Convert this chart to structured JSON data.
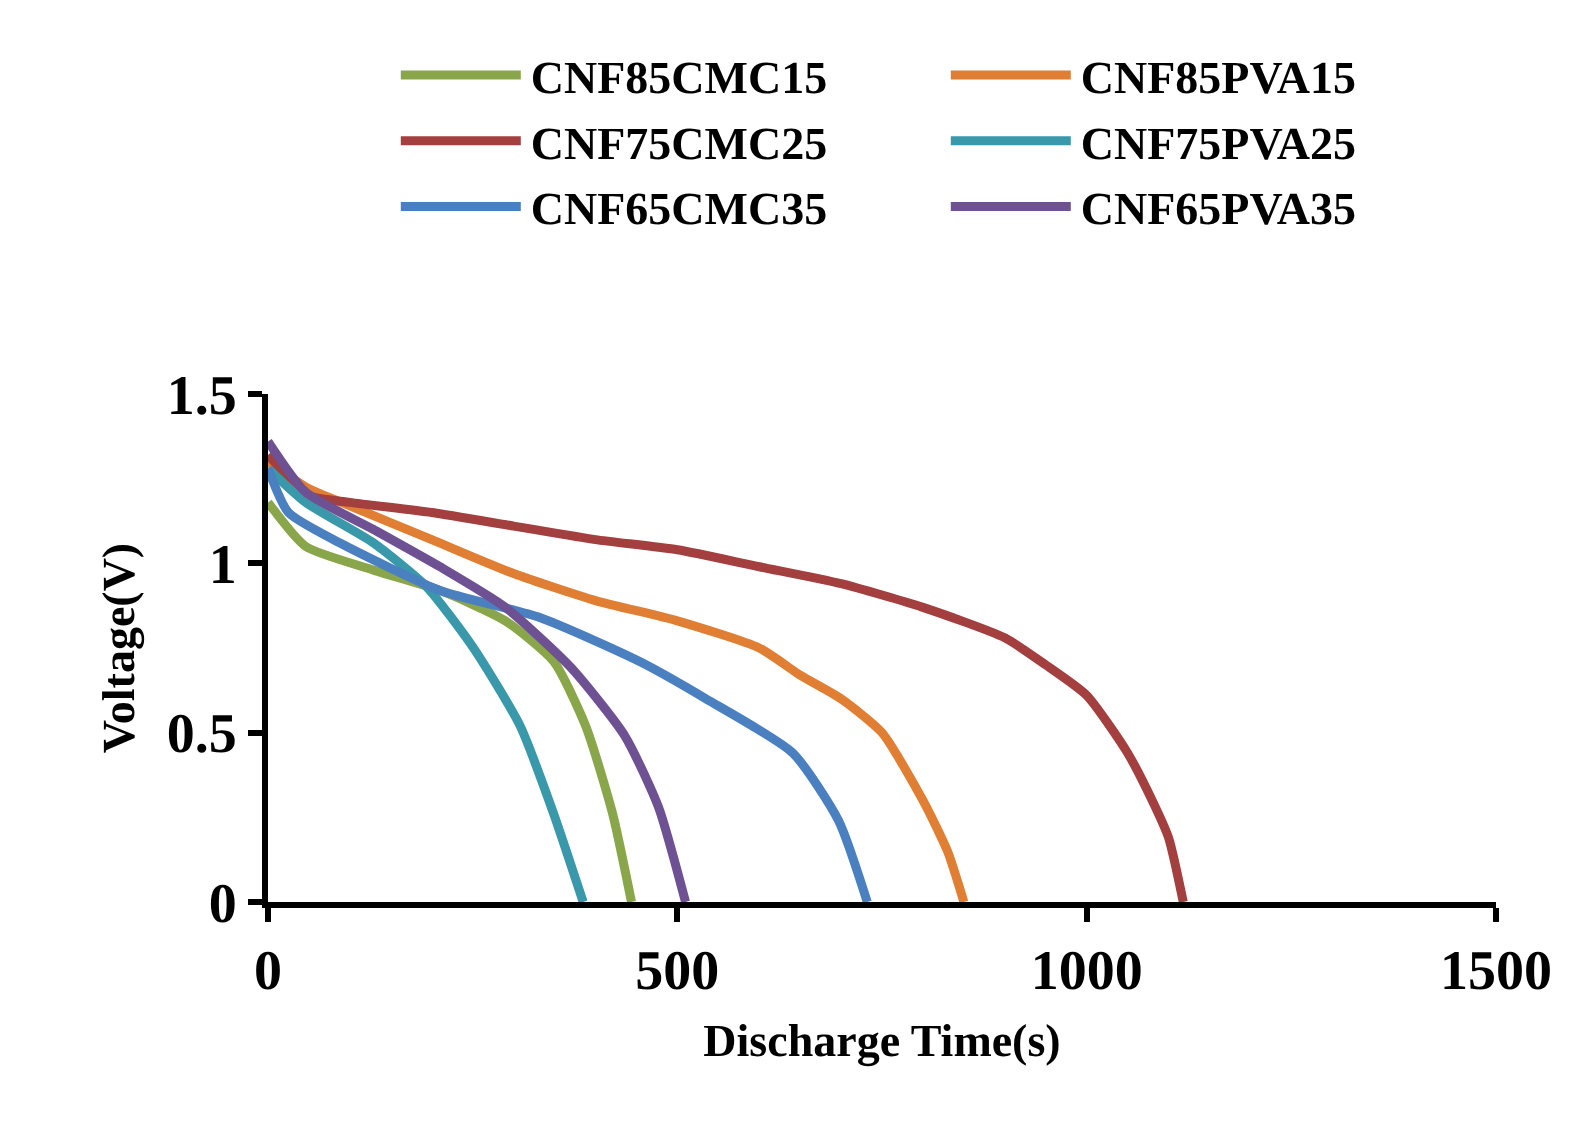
{
  "chart_data": {
    "type": "line",
    "xlabel": "Discharge Time(s)",
    "ylabel": "Voltage(V)",
    "xlim": [
      0,
      1500
    ],
    "xticks": [
      0,
      500,
      1000,
      1500
    ],
    "ylim": [
      0,
      1.5
    ],
    "yticks": [
      0,
      0.5,
      1,
      1.5
    ],
    "legend": "top",
    "marker": "none",
    "line_style": "solid",
    "series": [
      {
        "name": "CNF85CMC15",
        "color": "#8aa64a",
        "x": [
          0,
          46,
          129,
          210,
          290,
          349,
          388,
          421,
          444
        ],
        "values": [
          1.18,
          1.05,
          0.98,
          0.92,
          0.83,
          0.71,
          0.52,
          0.26,
          0
        ]
      },
      {
        "name": "CNF85PVA15",
        "color": "#e07f33",
        "x": [
          0,
          50,
          100,
          200,
          300,
          400,
          500,
          600,
          650,
          700,
          750,
          800,
          830,
          850
        ],
        "values": [
          1.3,
          1.22,
          1.17,
          1.07,
          0.97,
          0.89,
          0.83,
          0.75,
          0.67,
          0.6,
          0.5,
          0.3,
          0.15,
          0
        ]
      },
      {
        "name": "CNF75CMC25",
        "color": "#a33f3f",
        "x": [
          0,
          50,
          100,
          200,
          300,
          400,
          500,
          600,
          700,
          800,
          900,
          950,
          1000,
          1050,
          1080,
          1100,
          1118
        ],
        "values": [
          1.32,
          1.2,
          1.18,
          1.15,
          1.11,
          1.07,
          1.04,
          0.99,
          0.94,
          0.87,
          0.78,
          0.7,
          0.61,
          0.44,
          0.3,
          0.19,
          0
        ]
      },
      {
        "name": "CNF75PVA25",
        "color": "#3a98ab",
        "x": [
          0,
          46,
          129,
          194,
          251,
          308,
          349,
          385
        ],
        "values": [
          1.28,
          1.18,
          1.06,
          0.93,
          0.75,
          0.52,
          0.26,
          0
        ]
      },
      {
        "name": "CNF65CMC35",
        "color": "#4a7fc0",
        "x": [
          0,
          25,
          88,
          210,
          332,
          454,
          535,
          641,
          697,
          732
        ],
        "values": [
          1.28,
          1.15,
          1.06,
          0.92,
          0.84,
          0.71,
          0.6,
          0.44,
          0.24,
          0
        ]
      },
      {
        "name": "CNF65PVA35",
        "color": "#6e5192",
        "x": [
          0,
          46,
          129,
          210,
          290,
          371,
          436,
          477,
          510
        ],
        "values": [
          1.36,
          1.21,
          1.1,
          0.99,
          0.87,
          0.69,
          0.49,
          0.28,
          0
        ]
      }
    ]
  }
}
